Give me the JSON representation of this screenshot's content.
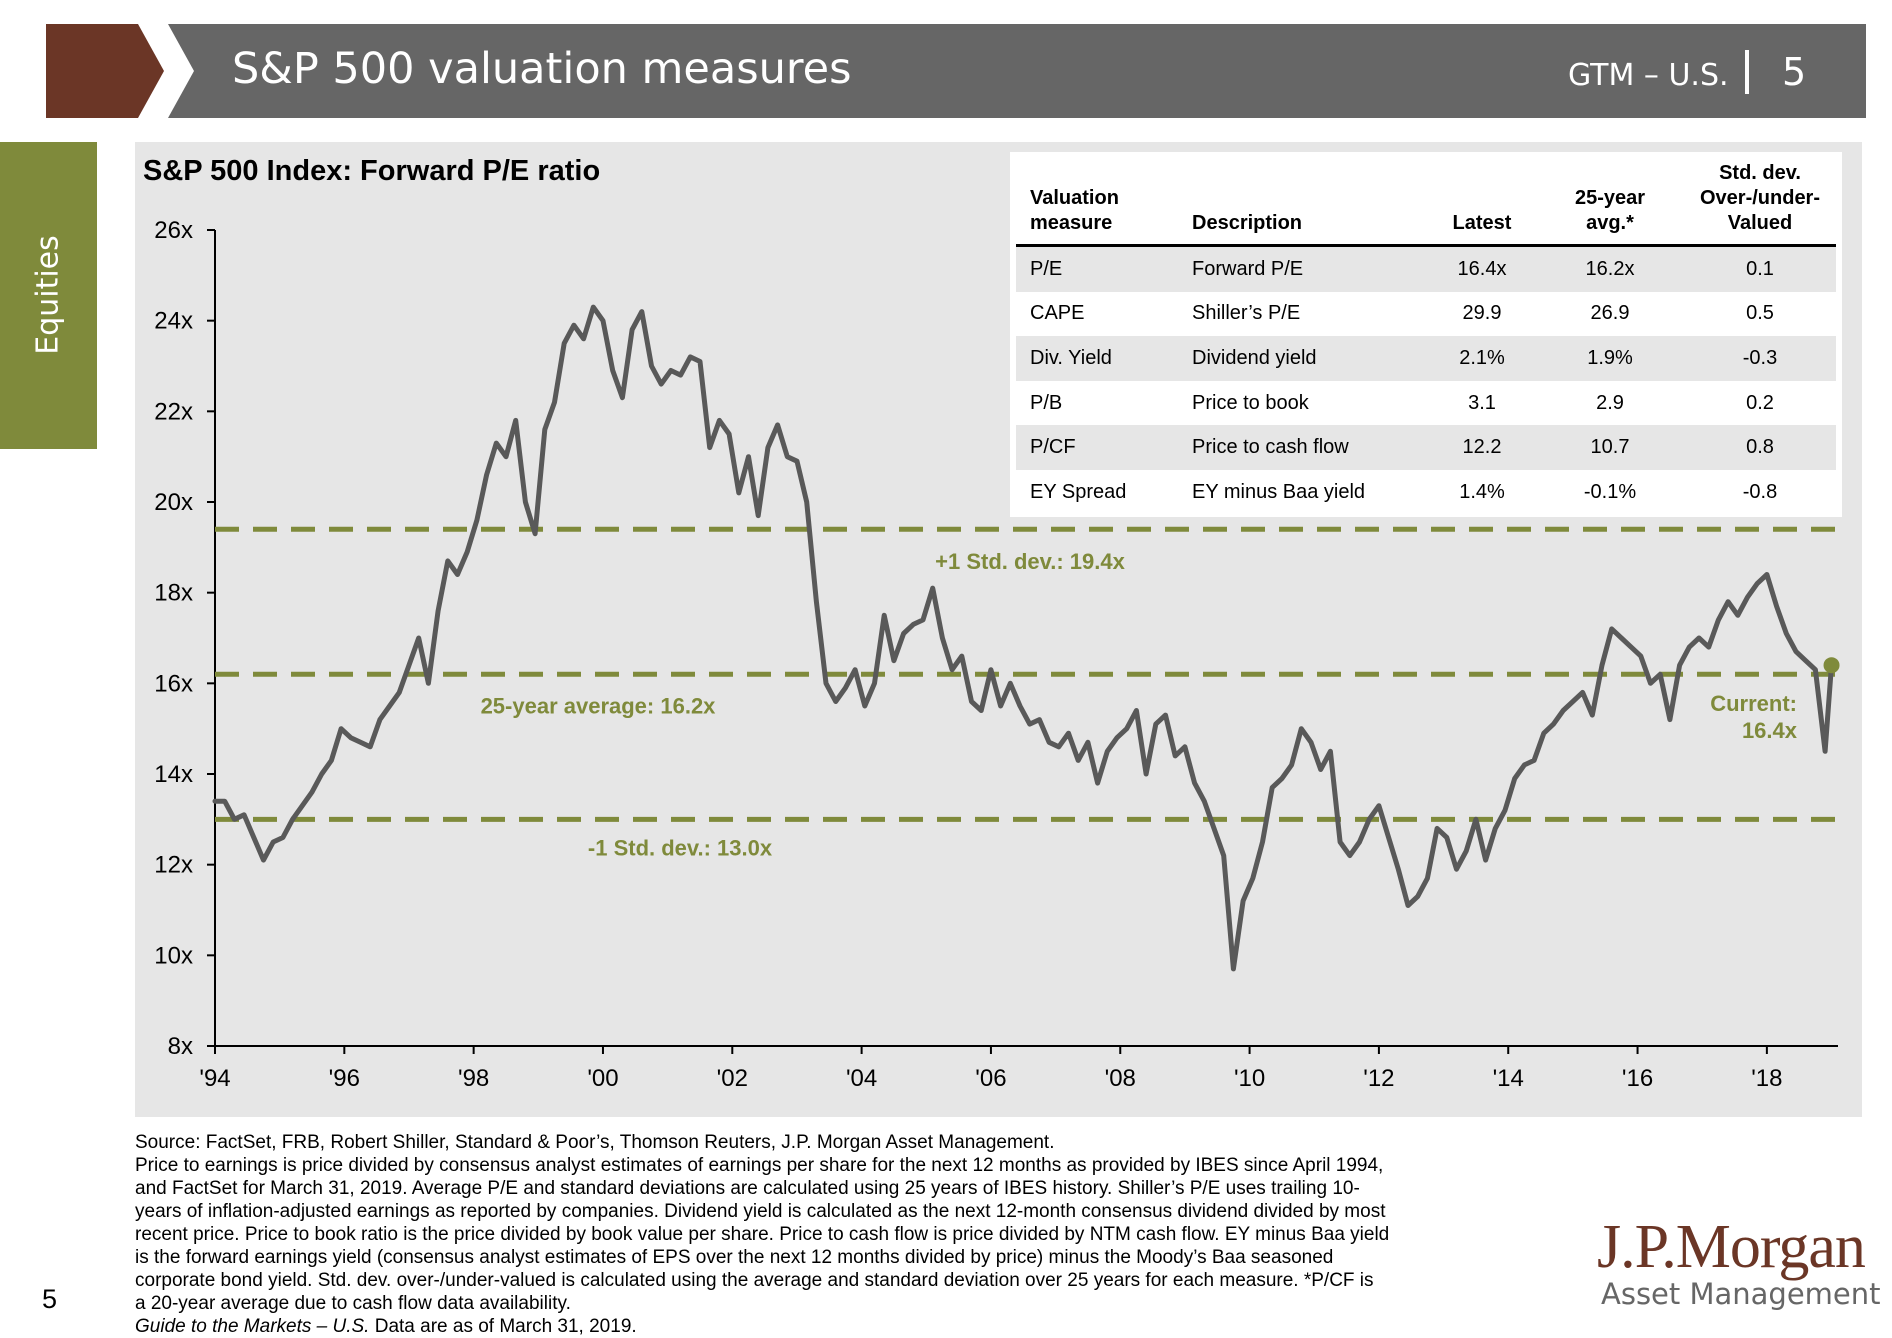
{
  "header": {
    "title": "S&P 500 valuation measures",
    "gtm": "GTM – U.S.",
    "page": "5",
    "bar_color": "#666666",
    "arrow_color": "#6b3626"
  },
  "side_tab": {
    "label": "Equities",
    "color": "#7f8a3b"
  },
  "chart_data": {
    "type": "line",
    "title": "S&P 500 Index: Forward P/E ratio",
    "ylim": [
      8,
      26
    ],
    "yticks": [
      8,
      10,
      12,
      14,
      16,
      18,
      20,
      22,
      24,
      26
    ],
    "ytick_labels": [
      "8x",
      "10x",
      "12x",
      "14x",
      "16x",
      "18x",
      "20x",
      "22x",
      "24x",
      "26x"
    ],
    "xlim": [
      1994,
      2019.1
    ],
    "xticks": [
      1994,
      1996,
      1998,
      2000,
      2002,
      2004,
      2006,
      2008,
      2010,
      2012,
      2014,
      2016,
      2018
    ],
    "xtick_labels": [
      "'94",
      "'96",
      "'98",
      "'00",
      "'02",
      "'04",
      "'06",
      "'08",
      "'10",
      "'12",
      "'14",
      "'16",
      "'18"
    ],
    "grid": false,
    "line_color": "#595959",
    "reference_color": "#7f8a3b",
    "reference_lines": [
      {
        "value": 19.4,
        "label": "+1 Std. dev.: 19.4x"
      },
      {
        "value": 16.2,
        "label": "25-year average: 16.2x"
      },
      {
        "value": 13.0,
        "label": "-1 Std. dev.: 13.0x"
      }
    ],
    "current": {
      "x": 2019.0,
      "y": 16.4,
      "label_line1": "Current:",
      "label_line2": "16.4x"
    },
    "series": [
      {
        "x": [
          1994.0,
          1994.15,
          1994.3,
          1994.45,
          1994.6,
          1994.75,
          1994.9,
          1995.05,
          1995.2,
          1995.35,
          1995.5,
          1995.65,
          1995.8,
          1995.95,
          1996.1,
          1996.25,
          1996.4,
          1996.55,
          1996.7,
          1996.85,
          1997.0,
          1997.15,
          1997.3,
          1997.45,
          1997.6,
          1997.75,
          1997.9,
          1998.05,
          1998.2,
          1998.35,
          1998.5,
          1998.65,
          1998.8,
          1998.95,
          1999.1,
          1999.25,
          1999.4,
          1999.55,
          1999.7,
          1999.85,
          2000.0,
          2000.15,
          2000.3,
          2000.45,
          2000.6,
          2000.75,
          2000.9,
          2001.05,
          2001.2,
          2001.35,
          2001.5,
          2001.65,
          2001.8,
          2001.95,
          2002.1,
          2002.25,
          2002.4,
          2002.55,
          2002.7,
          2002.85,
          2003.0,
          2003.15,
          2003.3,
          2003.45,
          2003.6,
          2003.75,
          2003.9,
          2004.05,
          2004.2,
          2004.35,
          2004.5,
          2004.65,
          2004.8,
          2004.95,
          2005.1,
          2005.25,
          2005.4,
          2005.55,
          2005.7,
          2005.85,
          2006.0,
          2006.15,
          2006.3,
          2006.45,
          2006.6,
          2006.75,
          2006.9,
          2007.05,
          2007.2,
          2007.35,
          2007.5,
          2007.65,
          2007.8,
          2007.95,
          2008.1,
          2008.25,
          2008.4,
          2008.55,
          2008.7,
          2008.85,
          2009.0,
          2009.15,
          2009.3,
          2009.45,
          2009.6,
          2009.75,
          2009.9,
          2010.05,
          2010.2,
          2010.35,
          2010.5,
          2010.65,
          2010.8,
          2010.95,
          2011.1,
          2011.25,
          2011.4,
          2011.55,
          2011.7,
          2011.85,
          2012.0,
          2012.15,
          2012.3,
          2012.45,
          2012.6,
          2012.75,
          2012.9,
          2013.05,
          2013.2,
          2013.35,
          2013.5,
          2013.65,
          2013.8,
          2013.95,
          2014.1,
          2014.25,
          2014.4,
          2014.55,
          2014.7,
          2014.85,
          2015.0,
          2015.15,
          2015.3,
          2015.45,
          2015.6,
          2015.75,
          2015.9,
          2016.05,
          2016.2,
          2016.35,
          2016.5,
          2016.65,
          2016.8,
          2016.95,
          2017.1,
          2017.25,
          2017.4,
          2017.55,
          2017.7,
          2017.85,
          2018.0,
          2018.15,
          2018.3,
          2018.45,
          2018.6,
          2018.75,
          2018.9,
          2019.0
        ],
        "values": [
          13.4,
          13.4,
          13.0,
          13.1,
          12.6,
          12.1,
          12.5,
          12.6,
          13.0,
          13.3,
          13.6,
          14.0,
          14.3,
          15.0,
          14.8,
          14.7,
          14.6,
          15.2,
          15.5,
          15.8,
          16.4,
          17.0,
          16.0,
          17.6,
          18.7,
          18.4,
          18.9,
          19.6,
          20.6,
          21.3,
          21.0,
          21.8,
          20.0,
          19.3,
          21.6,
          22.2,
          23.5,
          23.9,
          23.6,
          24.3,
          24.0,
          22.9,
          22.3,
          23.8,
          24.2,
          23.0,
          22.6,
          22.9,
          22.8,
          23.2,
          23.1,
          21.2,
          21.8,
          21.5,
          20.2,
          21.0,
          19.7,
          21.2,
          21.7,
          21.0,
          20.9,
          20.0,
          17.8,
          16.0,
          15.6,
          15.9,
          16.3,
          15.5,
          16.0,
          17.5,
          16.5,
          17.1,
          17.3,
          17.4,
          18.1,
          17.0,
          16.3,
          16.6,
          15.6,
          15.4,
          16.3,
          15.5,
          16.0,
          15.5,
          15.1,
          15.2,
          14.7,
          14.6,
          14.9,
          14.3,
          14.7,
          13.8,
          14.5,
          14.8,
          15.0,
          15.4,
          14.0,
          15.1,
          15.3,
          14.4,
          14.6,
          13.8,
          13.4,
          12.8,
          12.2,
          9.7,
          11.2,
          11.7,
          12.5,
          13.7,
          13.9,
          14.2,
          15.0,
          14.7,
          14.1,
          14.5,
          12.5,
          12.2,
          12.5,
          13.0,
          13.3,
          12.6,
          11.9,
          11.1,
          11.3,
          11.7,
          12.8,
          12.6,
          11.9,
          12.3,
          13.0,
          12.1,
          12.8,
          13.2,
          13.9,
          14.2,
          14.3,
          14.9,
          15.1,
          15.4,
          15.6,
          15.8,
          15.3,
          16.4,
          17.2,
          17.0,
          16.8,
          16.6,
          16.0,
          16.2,
          15.2,
          16.4,
          16.8,
          17.0,
          16.8,
          17.4,
          17.8,
          17.5,
          17.9,
          18.2,
          18.4,
          17.7,
          17.1,
          16.7,
          16.5,
          16.3,
          14.5,
          16.4
        ],
        "name": ""
      }
    ]
  },
  "table": {
    "headers": [
      [
        "Valuation",
        "measure"
      ],
      [
        "",
        "Description"
      ],
      [
        "",
        "Latest"
      ],
      [
        "25-year",
        "avg.*"
      ],
      [
        "Std. dev.",
        "Over-/under-",
        "Valued"
      ]
    ],
    "rows": [
      [
        "P/E",
        "Forward P/E",
        "16.4x",
        "16.2x",
        "0.1"
      ],
      [
        "CAPE",
        "Shiller’s P/E",
        "29.9",
        "26.9",
        "0.5"
      ],
      [
        "Div. Yield",
        "Dividend yield",
        "2.1%",
        "1.9%",
        "-0.3"
      ],
      [
        "P/B",
        "Price to book",
        "3.1",
        "2.9",
        "0.2"
      ],
      [
        "P/CF",
        "Price to cash flow",
        "12.2",
        "10.7",
        "0.8"
      ],
      [
        "EY Spread",
        "EY minus Baa yield",
        "1.4%",
        "-0.1%",
        "-0.8"
      ]
    ]
  },
  "footnote": {
    "lines": [
      "Source: FactSet, FRB, Robert Shiller, Standard & Poor’s, Thomson Reuters, J.P. Morgan Asset Management.",
      "Price to earnings is price divided by consensus analyst estimates of earnings per share for the next 12 months as provided by IBES since April 1994,",
      "and FactSet for March 31, 2019. Average P/E and standard deviations are calculated using 25 years of IBES history. Shiller’s P/E uses trailing 10-",
      "years of inflation-adjusted earnings as reported by companies. Dividend yield is calculated as the next 12-month consensus dividend divided by most",
      "recent price. Price to book ratio is the price divided by book value per share. Price to cash flow is price divided by NTM cash flow. EY minus Baa yield",
      "is the forward earnings yield (consensus analyst estimates of EPS over the next 12 months divided by price) minus the Moody’s Baa seasoned",
      "corporate bond yield. Std. dev. over-/under-valued is calculated using the average and standard deviation over 25 years for each measure. *P/CF is",
      "a 20-year average due to cash flow data availability."
    ],
    "guide_italic": "Guide to the Markets – U.S.",
    "guide_rest": " Data are as of March 31, 2019."
  },
  "page_number": "5",
  "logo": {
    "line1": "J.P.Morgan",
    "line2": "Asset Management"
  }
}
